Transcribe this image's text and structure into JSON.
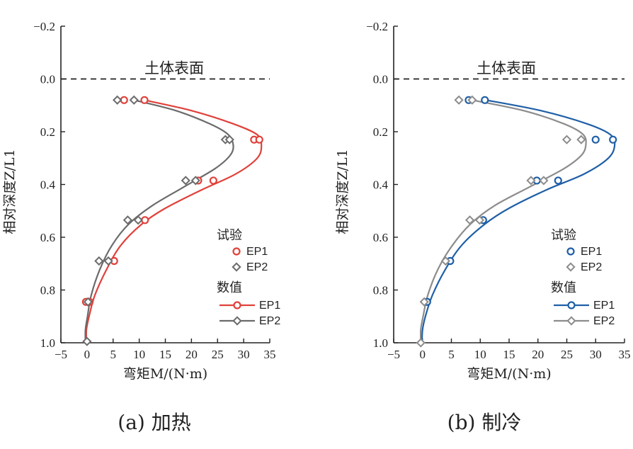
{
  "chart_data": [
    {
      "type": "line",
      "panel": "a",
      "caption": "(a) 加热",
      "annotation": "土体表面",
      "xlabel": "弯矩M/(N·m)",
      "ylabel": "相对深度Z/L1",
      "xlim": [
        -5,
        35
      ],
      "ylim": [
        1.0,
        -0.2
      ],
      "xticks": [
        "−5",
        "0",
        "5",
        "10",
        "15",
        "20",
        "25",
        "30",
        "35"
      ],
      "yticks": [
        "−0.2",
        "0.0",
        "0.2",
        "0.4",
        "0.6",
        "0.8",
        "1.0"
      ],
      "reference_line_y": 0.0,
      "legend": {
        "test_heading": "试验",
        "numeric_heading": "数值",
        "position": "lower-right"
      },
      "series": [
        {
          "name": "EP1",
          "kind": "test",
          "marker": "circle",
          "color": "#e0413a",
          "points": [
            [
              7.1,
              0.08
            ],
            [
              11,
              0.08
            ],
            [
              32,
              0.23
            ],
            [
              33,
              0.23
            ],
            [
              21.3,
              0.385
            ],
            [
              24.2,
              0.385
            ],
            [
              11.1,
              0.535
            ],
            [
              5.2,
              0.69
            ],
            [
              0.5,
              0.845
            ],
            [
              -0.2,
              0.845
            ]
          ]
        },
        {
          "name": "EP2",
          "kind": "test",
          "marker": "diamond",
          "color": "#6b6b6b",
          "points": [
            [
              5.8,
              0.08
            ],
            [
              9,
              0.08
            ],
            [
              26.5,
              0.23
            ],
            [
              27.3,
              0.23
            ],
            [
              18.9,
              0.385
            ],
            [
              20.8,
              0.385
            ],
            [
              7.8,
              0.535
            ],
            [
              9.8,
              0.535
            ],
            [
              2.3,
              0.69
            ],
            [
              4.1,
              0.69
            ],
            [
              0.2,
              0.845
            ],
            [
              0.0,
              0.995
            ]
          ]
        },
        {
          "name": "EP1",
          "kind": "numeric",
          "marker": "circle",
          "color": "#e0413a",
          "points": [
            [
              11,
              0.08
            ],
            [
              20,
              0.12
            ],
            [
              28,
              0.17
            ],
            [
              32.5,
              0.21
            ],
            [
              33.4,
              0.25
            ],
            [
              32.6,
              0.3
            ],
            [
              28.5,
              0.36
            ],
            [
              22,
              0.42
            ],
            [
              15,
              0.49
            ],
            [
              10.5,
              0.55
            ],
            [
              6.5,
              0.63
            ],
            [
              3.8,
              0.72
            ],
            [
              1.5,
              0.82
            ],
            [
              0.4,
              0.9
            ],
            [
              -0.1,
              0.95
            ],
            [
              -0.1,
              1.0
            ]
          ]
        },
        {
          "name": "EP2",
          "kind": "numeric",
          "marker": "diamond",
          "color": "#6b6b6b",
          "points": [
            [
              9,
              0.08
            ],
            [
              17,
              0.12
            ],
            [
              23.5,
              0.17
            ],
            [
              27,
              0.21
            ],
            [
              28,
              0.25
            ],
            [
              27.4,
              0.29
            ],
            [
              24.5,
              0.34
            ],
            [
              18.5,
              0.41
            ],
            [
              12.5,
              0.48
            ],
            [
              8,
              0.55
            ],
            [
              4.8,
              0.63
            ],
            [
              2.5,
              0.72
            ],
            [
              0.8,
              0.82
            ],
            [
              0.1,
              0.9
            ],
            [
              -0.3,
              0.95
            ],
            [
              -0.3,
              1.0
            ]
          ]
        }
      ]
    },
    {
      "type": "line",
      "panel": "b",
      "caption": "(b) 制冷",
      "annotation": "土体表面",
      "xlabel": "弯矩M/(N·m)",
      "ylabel": "相对深度Z/L1",
      "xlim": [
        -5,
        35
      ],
      "ylim": [
        1.0,
        -0.2
      ],
      "xticks": [
        "−5",
        "0",
        "5",
        "10",
        "15",
        "20",
        "25",
        "30",
        "35"
      ],
      "yticks": [
        "−0.2",
        "0.0",
        "0.2",
        "0.4",
        "0.6",
        "0.8",
        "1.0"
      ],
      "reference_line_y": 0.0,
      "legend": {
        "test_heading": "试验",
        "numeric_heading": "数值",
        "position": "lower-right"
      },
      "series": [
        {
          "name": "EP1",
          "kind": "test",
          "marker": "circle",
          "color": "#1f5fa6",
          "points": [
            [
              8,
              0.08
            ],
            [
              10.8,
              0.08
            ],
            [
              30,
              0.23
            ],
            [
              33,
              0.23
            ],
            [
              19.8,
              0.385
            ],
            [
              23.5,
              0.385
            ],
            [
              10.5,
              0.535
            ],
            [
              4.8,
              0.69
            ],
            [
              0.8,
              0.845
            ]
          ]
        },
        {
          "name": "EP2",
          "kind": "test",
          "marker": "diamond",
          "color": "#8c8c8c",
          "points": [
            [
              6.3,
              0.08
            ],
            [
              8.6,
              0.08
            ],
            [
              25,
              0.23
            ],
            [
              27.5,
              0.23
            ],
            [
              18.8,
              0.385
            ],
            [
              21,
              0.385
            ],
            [
              8.2,
              0.535
            ],
            [
              9.9,
              0.535
            ],
            [
              4,
              0.69
            ],
            [
              0.3,
              0.845
            ],
            [
              -0.3,
              1.0
            ]
          ]
        },
        {
          "name": "EP1",
          "kind": "numeric",
          "marker": "circle",
          "color": "#1f5fa6",
          "points": [
            [
              11,
              0.08
            ],
            [
              20.5,
              0.12
            ],
            [
              28.5,
              0.17
            ],
            [
              32.5,
              0.21
            ],
            [
              33.3,
              0.25
            ],
            [
              32.2,
              0.3
            ],
            [
              28,
              0.36
            ],
            [
              21.5,
              0.42
            ],
            [
              15,
              0.49
            ],
            [
              10.8,
              0.55
            ],
            [
              6.8,
              0.63
            ],
            [
              4,
              0.72
            ],
            [
              1.7,
              0.82
            ],
            [
              0.5,
              0.9
            ],
            [
              0.0,
              0.95
            ],
            [
              -0.1,
              1.0
            ]
          ]
        },
        {
          "name": "EP2",
          "kind": "numeric",
          "marker": "diamond",
          "color": "#8c8c8c",
          "points": [
            [
              8.6,
              0.08
            ],
            [
              17.5,
              0.12
            ],
            [
              24.5,
              0.17
            ],
            [
              27.8,
              0.21
            ],
            [
              28.3,
              0.25
            ],
            [
              27.5,
              0.29
            ],
            [
              24.5,
              0.34
            ],
            [
              18.5,
              0.41
            ],
            [
              12.5,
              0.48
            ],
            [
              8.3,
              0.55
            ],
            [
              5.2,
              0.63
            ],
            [
              2.7,
              0.72
            ],
            [
              0.9,
              0.82
            ],
            [
              0.1,
              0.9
            ],
            [
              -0.3,
              0.95
            ],
            [
              -0.3,
              1.0
            ]
          ]
        }
      ]
    }
  ]
}
